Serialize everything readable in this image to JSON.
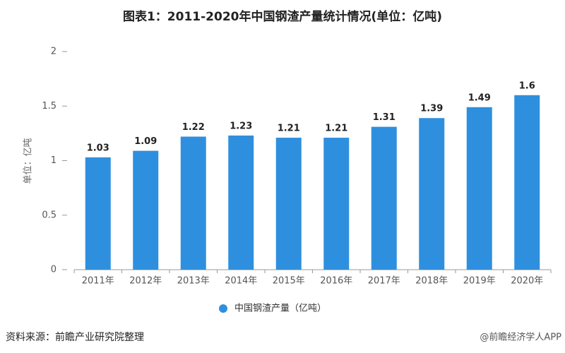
{
  "chart_data": {
    "type": "bar",
    "title": "图表1：2011-2020年中国钢渣产量统计情况(单位：亿吨)",
    "y_label": "单位：亿吨",
    "categories": [
      "2011年",
      "2012年",
      "2013年",
      "2014年",
      "2015年",
      "2016年",
      "2017年",
      "2018年",
      "2019年",
      "2020年"
    ],
    "series": [
      {
        "name": "中国钢渣产量（亿吨）",
        "color": "#2f8fdf",
        "values": [
          1.03,
          1.09,
          1.22,
          1.23,
          1.21,
          1.21,
          1.31,
          1.39,
          1.49,
          1.6
        ]
      }
    ],
    "ylim": [
      0,
      2
    ],
    "yticks": [
      0,
      0.5,
      1,
      1.5,
      2
    ],
    "grid": false,
    "legend": "bottom",
    "source": "资料来源：前瞻产业研究院整理",
    "watermark": "@前瞻经济学人APP"
  }
}
